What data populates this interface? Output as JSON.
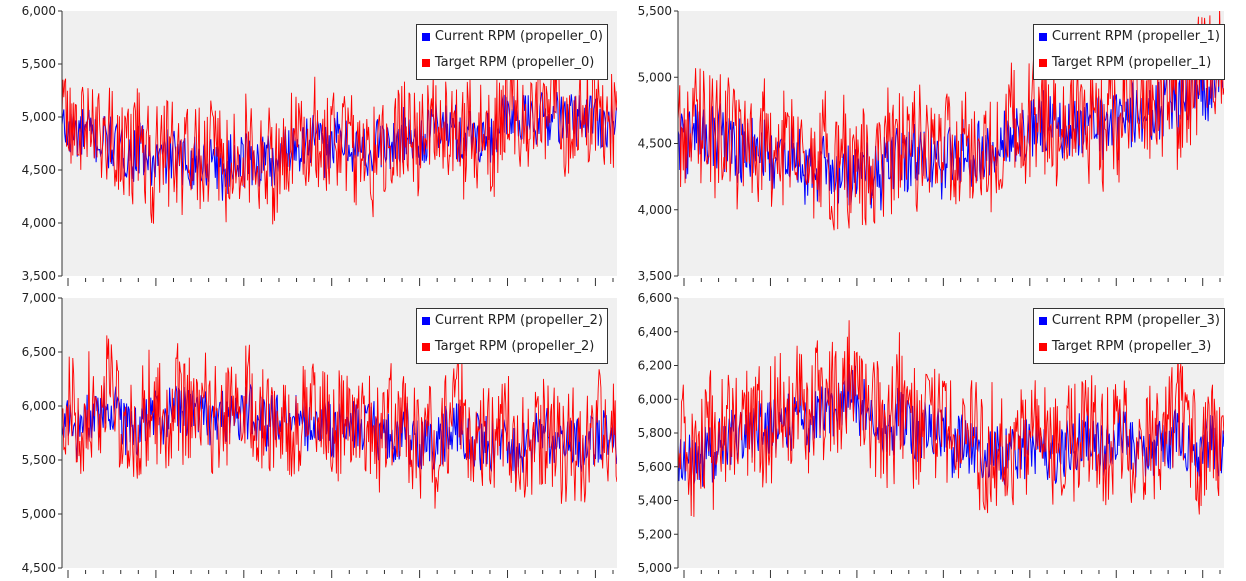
{
  "colors": {
    "current": "#0000ff",
    "target": "#ff0000",
    "plot_background": "#f0f0f0",
    "axis": "#333333"
  },
  "chart_data": [
    {
      "type": "line",
      "ylim": [
        3500,
        6000
      ],
      "yticks": [
        "3,500",
        "4,000",
        "4,500",
        "5,000",
        "5,500",
        "6,000"
      ],
      "x_tick_count": 32,
      "legend_position": "top-right",
      "series": [
        {
          "name": "Current RPM (propeller_0)",
          "color": "#0000ff",
          "mean": 4720,
          "spread": 260
        },
        {
          "name": "Target RPM (propeller_0)",
          "color": "#ff0000",
          "mean": 4780,
          "spread": 520
        }
      ],
      "trend": [
        [
          0,
          4950
        ],
        [
          0.15,
          4700
        ],
        [
          0.3,
          4550
        ],
        [
          0.45,
          4850
        ],
        [
          0.6,
          4800
        ],
        [
          0.8,
          5000
        ],
        [
          1.0,
          5050
        ]
      ]
    },
    {
      "type": "line",
      "ylim": [
        3500,
        5500
      ],
      "yticks": [
        "3,500",
        "4,000",
        "4,500",
        "5,000",
        "5,500"
      ],
      "x_tick_count": 32,
      "legend_position": "top-right",
      "series": [
        {
          "name": "Current RPM (propeller_1)",
          "color": "#0000ff",
          "mean": 4480,
          "spread": 240
        },
        {
          "name": "Target RPM (propeller_1)",
          "color": "#ff0000",
          "mean": 4560,
          "spread": 460
        }
      ],
      "trend": [
        [
          0,
          4600
        ],
        [
          0.15,
          4450
        ],
        [
          0.3,
          4300
        ],
        [
          0.45,
          4400
        ],
        [
          0.6,
          4550
        ],
        [
          0.8,
          4750
        ],
        [
          1.0,
          4950
        ]
      ]
    },
    {
      "type": "line",
      "ylim": [
        4500,
        7000
      ],
      "yticks": [
        "4,500",
        "5,000",
        "5,500",
        "6,000",
        "6,500",
        "7,000"
      ],
      "x_tick_count": 32,
      "legend_position": "top-right",
      "series": [
        {
          "name": "Current RPM (propeller_2)",
          "color": "#0000ff",
          "mean": 5700,
          "spread": 260
        },
        {
          "name": "Target RPM (propeller_2)",
          "color": "#ff0000",
          "mean": 5820,
          "spread": 520
        }
      ],
      "trend": [
        [
          0,
          5850
        ],
        [
          0.2,
          6050
        ],
        [
          0.4,
          5950
        ],
        [
          0.6,
          5800
        ],
        [
          0.8,
          5750
        ],
        [
          1.0,
          5800
        ]
      ]
    },
    {
      "type": "line",
      "ylim": [
        5000,
        6600
      ],
      "yticks": [
        "5,000",
        "5,200",
        "5,400",
        "5,600",
        "5,800",
        "6,000",
        "6,200",
        "6,400",
        "6,600"
      ],
      "x_tick_count": 32,
      "legend_position": "top-right",
      "series": [
        {
          "name": "Current RPM (propeller_3)",
          "color": "#0000ff",
          "mean": 5720,
          "spread": 180
        },
        {
          "name": "Target RPM (propeller_3)",
          "color": "#ff0000",
          "mean": 5800,
          "spread": 360
        }
      ],
      "trend": [
        [
          0,
          5650
        ],
        [
          0.2,
          5900
        ],
        [
          0.3,
          6050
        ],
        [
          0.45,
          5850
        ],
        [
          0.6,
          5700
        ],
        [
          0.8,
          5800
        ],
        [
          1.0,
          5750
        ]
      ]
    }
  ]
}
